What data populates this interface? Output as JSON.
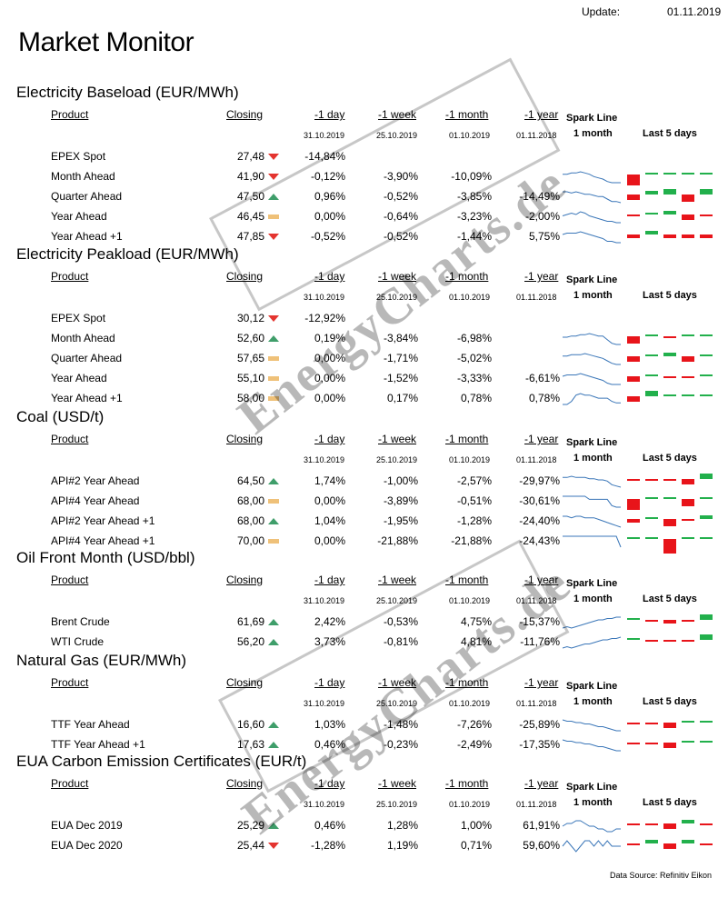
{
  "header": {
    "update_label": "Update:",
    "update_date": "01.11.2019",
    "title": "Market Monitor"
  },
  "columns": {
    "product": "Product",
    "closing": "Closing",
    "day": "-1 day",
    "week": "-1 week",
    "month": "-1 month",
    "year": "-1 year",
    "spark_line": "Spark Line",
    "spark_period": "1 month",
    "last5": "Last 5  days",
    "date_day": "31.10.2019",
    "date_week": "25.10.2019",
    "date_month": "01.10.2019",
    "date_year": "01.11.2018"
  },
  "colors": {
    "up": "#3f9e6a",
    "down": "#e4342f",
    "flat": "#efc179",
    "bar_pos": "#22b04c",
    "bar_neg": "#e8141a",
    "spark": "#3a76b8"
  },
  "sections": [
    {
      "title": "Electricity Baseload (EUR/MWh)",
      "rows": [
        {
          "name": "EPEX Spot",
          "closing": "27,48",
          "trend": "down",
          "day": "-14,84%",
          "week": "",
          "month": "",
          "year": "",
          "spark": [],
          "bars": []
        },
        {
          "name": "Month Ahead",
          "closing": "41,90",
          "trend": "down",
          "day": "-0,12%",
          "week": "-3,90%",
          "month": "-10,09%",
          "year": "",
          "spark": [
            5,
            5,
            4,
            4,
            3,
            4,
            5,
            7,
            8,
            9,
            11,
            12,
            12,
            12
          ],
          "bars": [
            -6,
            1,
            1,
            1,
            1
          ]
        },
        {
          "name": "Quarter Ahead",
          "closing": "47,50",
          "trend": "up",
          "day": "0,96%",
          "week": "-0,52%",
          "month": "-3,85%",
          "year": "-14,49%",
          "spark": [
            3,
            3,
            4,
            3,
            4,
            5,
            5,
            6,
            7,
            7,
            9,
            11,
            11,
            12
          ],
          "bars": [
            -3,
            2,
            3,
            -4,
            3
          ]
        },
        {
          "name": "Year Ahead",
          "closing": "46,45",
          "trend": "flat",
          "day": "0,00%",
          "week": "-0,64%",
          "month": "-3,23%",
          "year": "-2,00%",
          "spark": [
            6,
            5,
            4,
            5,
            3,
            4,
            6,
            7,
            8,
            9,
            10,
            10,
            11,
            11
          ],
          "bars": [
            -1,
            1,
            2,
            -3,
            -1
          ]
        },
        {
          "name": "Year  Ahead +1",
          "closing": "47,85",
          "trend": "down",
          "day": "-0,52%",
          "week": "-0,52%",
          "month": "-1,44%",
          "year": "5,75%",
          "spark": [
            5,
            4,
            4,
            4,
            3,
            4,
            5,
            6,
            7,
            8,
            10,
            10,
            11,
            11
          ],
          "bars": [
            -2,
            2,
            -2,
            -2,
            -2
          ]
        }
      ]
    },
    {
      "title": "Electricity Peakload (EUR/MWh)",
      "rows": [
        {
          "name": "EPEX Spot",
          "closing": "30,12",
          "trend": "down",
          "day": "-12,92%",
          "week": "",
          "month": "",
          "year": "",
          "spark": [],
          "bars": []
        },
        {
          "name": "Month Ahead",
          "closing": "52,60",
          "trend": "up",
          "day": "0,19%",
          "week": "-3,84%",
          "month": "-6,98%",
          "year": "",
          "spark": [
            6,
            6,
            5,
            5,
            4,
            4,
            3,
            4,
            5,
            5,
            8,
            11,
            12,
            12
          ],
          "bars": [
            -4,
            1,
            -1,
            1,
            1
          ]
        },
        {
          "name": "Quarter Ahead",
          "closing": "57,65",
          "trend": "flat",
          "day": "0,00%",
          "week": "-1,71%",
          "month": "-5,02%",
          "year": "",
          "spark": [
            5,
            5,
            4,
            4,
            4,
            3,
            4,
            5,
            6,
            7,
            9,
            11,
            12,
            12
          ],
          "bars": [
            -3,
            1,
            2,
            -3,
            0
          ]
        },
        {
          "name": "Year Ahead",
          "closing": "55,10",
          "trend": "flat",
          "day": "0,00%",
          "week": "-1,52%",
          "month": "-3,33%",
          "year": "-6,61%",
          "spark": [
            5,
            4,
            4,
            4,
            3,
            4,
            5,
            6,
            7,
            8,
            10,
            11,
            11,
            11
          ],
          "bars": [
            -3,
            1,
            -1,
            -1,
            0
          ]
        },
        {
          "name": "Year  Ahead +1",
          "closing": "58,00",
          "trend": "flat",
          "day": "0,00%",
          "week": "0,17%",
          "month": "0,78%",
          "year": "0,78%",
          "spark": [
            11,
            11,
            9,
            5,
            4,
            5,
            5,
            6,
            7,
            7,
            7,
            9,
            10,
            10
          ],
          "bars": [
            -3,
            3,
            0,
            0,
            0
          ]
        }
      ]
    },
    {
      "title": "Coal (USD/t)",
      "rows": [
        {
          "name": "API#2 Year Ahead",
          "closing": "64,50",
          "trend": "up",
          "day": "1,74%",
          "week": "-1,00%",
          "month": "-2,57%",
          "year": "-29,97%",
          "spark": [
            4,
            4,
            3,
            4,
            4,
            4,
            5,
            5,
            6,
            6,
            7,
            10,
            11,
            12
          ],
          "bars": [
            -1,
            -1,
            -1,
            -3,
            3
          ]
        },
        {
          "name": "API#4 Year Ahead",
          "closing": "68,00",
          "trend": "flat",
          "day": "0,00%",
          "week": "-3,89%",
          "month": "-0,51%",
          "year": "-30,61%",
          "spark": [
            3,
            3,
            3,
            3,
            3,
            3,
            5,
            5,
            5,
            5,
            5,
            9,
            10,
            10
          ],
          "bars": [
            -6,
            0,
            0,
            -4,
            0
          ]
        },
        {
          "name": "API#2 Year Ahead +1",
          "closing": "68,00",
          "trend": "up",
          "day": "1,04%",
          "week": "-1,95%",
          "month": "-1,28%",
          "year": "-24,40%",
          "spark": [
            4,
            4,
            5,
            4,
            4,
            5,
            5,
            5,
            6,
            7,
            8,
            9,
            10,
            11
          ],
          "bars": [
            -2,
            0,
            -4,
            -1,
            2
          ]
        },
        {
          "name": "API#4 Year Ahead +1",
          "closing": "70,00",
          "trend": "flat",
          "day": "0,00%",
          "week": "-21,88%",
          "month": "-21,88%",
          "year": "-24,43%",
          "spark": [
            2,
            2,
            2,
            2,
            2,
            2,
            2,
            2,
            2,
            2,
            2,
            2,
            2,
            14
          ],
          "bars": [
            0,
            0,
            -8,
            0,
            0
          ]
        }
      ]
    },
    {
      "title": "Oil Front Month (USD/bbl)",
      "rows": [
        {
          "name": "Brent Crude",
          "closing": "61,69",
          "trend": "up",
          "day": "2,42%",
          "week": "-0,53%",
          "month": "4,75%",
          "year": "-15,37%",
          "spark": [
            11,
            10,
            11,
            10,
            9,
            8,
            7,
            6,
            5,
            5,
            4,
            4,
            3,
            3
          ],
          "bars": [
            1,
            -1,
            -2,
            -1,
            3
          ]
        },
        {
          "name": "WTI Crude",
          "closing": "56,20",
          "trend": "up",
          "day": "3,73%",
          "week": "-0,81%",
          "month": "4,81%",
          "year": "-11,76%",
          "spark": [
            11,
            10,
            11,
            10,
            9,
            8,
            8,
            7,
            6,
            5,
            5,
            4,
            4,
            3
          ],
          "bars": [
            1,
            -1,
            -1,
            -1,
            3
          ]
        }
      ]
    },
    {
      "title": "Natural Gas (EUR/MWh)",
      "rows": [
        {
          "name": "TTF Year Ahead",
          "closing": "16,60",
          "trend": "up",
          "day": "1,03%",
          "week": "-1,48%",
          "month": "-7,26%",
          "year": "-25,89%",
          "spark": [
            3,
            4,
            4,
            5,
            5,
            6,
            6,
            7,
            8,
            8,
            9,
            10,
            11,
            11
          ],
          "bars": [
            -1,
            -1,
            -3,
            1,
            1
          ]
        },
        {
          "name": "TTF Year Ahead +1",
          "closing": "17,63",
          "trend": "up",
          "day": "0,46%",
          "week": "-0,23%",
          "month": "-2,49%",
          "year": "-17,35%",
          "spark": [
            3,
            4,
            4,
            5,
            5,
            6,
            6,
            7,
            8,
            8,
            9,
            10,
            11,
            11
          ],
          "bars": [
            -1,
            -1,
            -3,
            1,
            1
          ]
        }
      ]
    },
    {
      "title": "EUA Carbon Emission Certificates (EUR/t)",
      "rows": [
        {
          "name": "EUA Dec 2019",
          "closing": "25,29",
          "trend": "up",
          "day": "0,46%",
          "week": "1,28%",
          "month": "1,00%",
          "year": "61,91%",
          "spark": [
            8,
            7,
            7,
            6,
            6,
            7,
            8,
            8,
            9,
            9,
            10,
            10,
            9,
            9
          ],
          "bars": [
            -1,
            -1,
            -3,
            2,
            -1
          ]
        },
        {
          "name": "EUA Dec 2020",
          "closing": "25,44",
          "trend": "down",
          "day": "-1,28%",
          "week": "1,19%",
          "month": "0,71%",
          "year": "59,60%",
          "spark": [
            8,
            7,
            8,
            9,
            8,
            7,
            7,
            8,
            7,
            8,
            7,
            8,
            8,
            8
          ],
          "bars": [
            -1,
            2,
            -3,
            2,
            -1
          ]
        }
      ]
    }
  ],
  "footer": {
    "source": "Data Source: Refinitiv Eikon"
  },
  "watermark": {
    "text": "EnergyCharts.de"
  }
}
